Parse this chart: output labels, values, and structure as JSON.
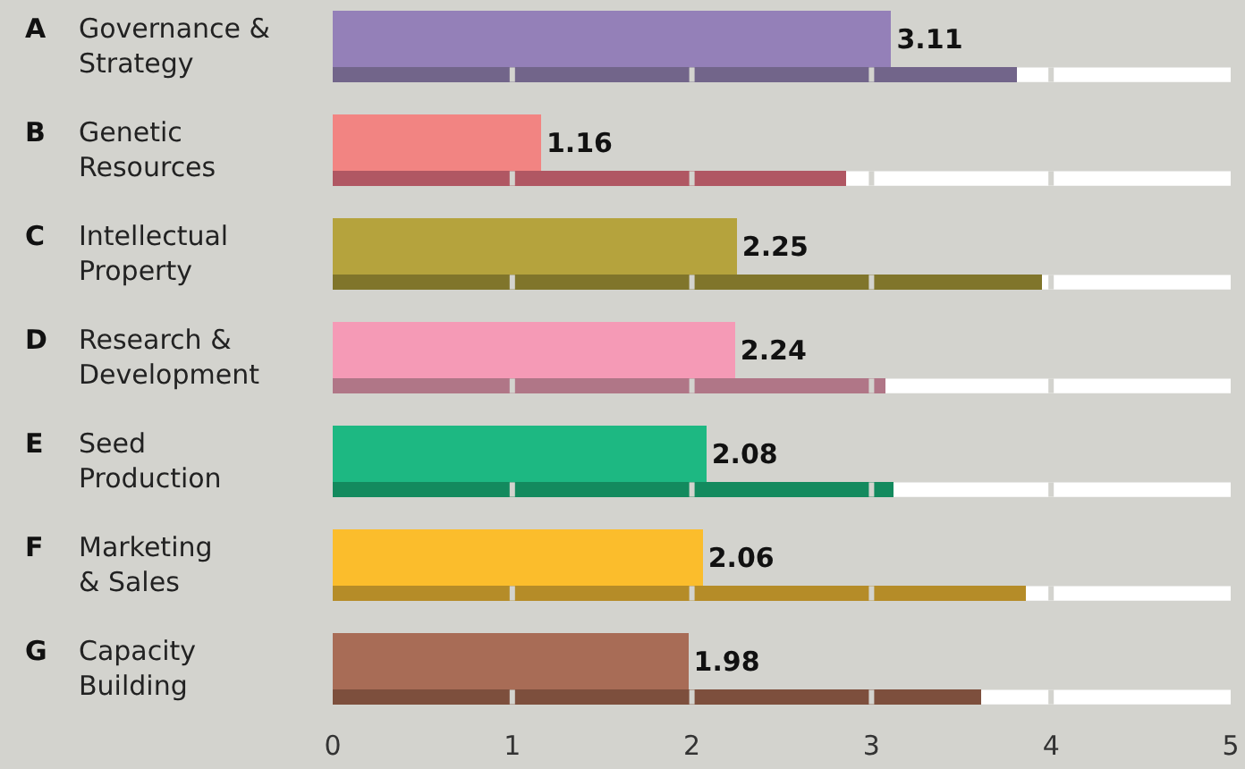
{
  "chart_data": {
    "type": "bar",
    "orientation": "horizontal",
    "categories": [
      "A Governance &\nStrategy",
      "B Genetic\nResources",
      "C Intellectual\nProperty",
      "D Research &\nDevelopment",
      "E Seed\nProduction",
      "F Marketing\n& Sales",
      "G Capacity\nBuilding"
    ],
    "series": [
      {
        "colors": [
          "#72658a",
          "#b05763",
          "#80752b",
          "#b07687",
          "#138a5e",
          "#b58c28",
          "#7d4f3d"
        ],
        "values": [
          3.81,
          2.86,
          3.95,
          3.08,
          3.12,
          3.86,
          3.61
        ]
      },
      {
        "colors": [
          "#9480b8",
          "#f28482",
          "#b5a33d",
          "#f59ab6",
          "#1db882",
          "#fbbd2c",
          "#a86c56"
        ],
        "values": [
          3.11,
          1.16,
          2.25,
          2.24,
          2.08,
          2.06,
          1.98
        ],
        "value_labels": [
          "3.11",
          "1.16",
          "2.25",
          "2.24",
          "2.08",
          "2.06",
          "1.98"
        ]
      }
    ],
    "xlim": [
      0,
      5
    ],
    "xticks": [
      0,
      1,
      2,
      3,
      4,
      5
    ]
  }
}
